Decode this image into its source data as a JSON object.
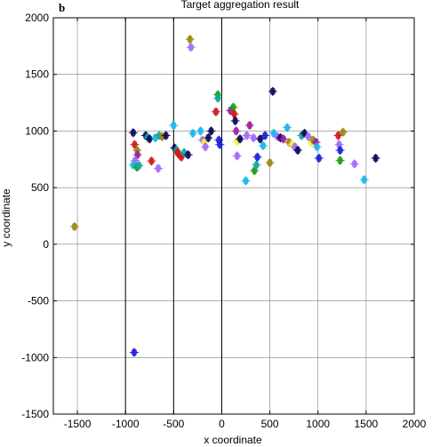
{
  "panel_tag": "b",
  "chart_data": {
    "type": "scatter",
    "title": "Target aggregation result",
    "xlabel": "x coordinate",
    "ylabel": "y coordinate",
    "xlim": [
      -1750,
      2000
    ],
    "ylim": [
      -1500,
      2000
    ],
    "grid": true,
    "legend": "none",
    "x_ticks": [
      -1500,
      -1000,
      -500,
      0,
      500,
      1000,
      1500,
      2000
    ],
    "y_ticks": [
      -1500,
      -1000,
      -500,
      0,
      500,
      1000,
      1500,
      2000
    ],
    "vertical_lines": [
      -1000,
      -500,
      0
    ],
    "colors": {
      "navy": "#0b0b5c",
      "blue": "#1f1fe0",
      "red": "#d21a1a",
      "green": "#1a9e1a",
      "magenta": "#a11fa1",
      "violet": "#a06cff",
      "cyan": "#19b8e8",
      "yellow": "#f0f040",
      "olive": "#9a8a10",
      "teal": "#14a89a",
      "gray": "#555555"
    },
    "points": [
      {
        "x": -1530,
        "y": 155,
        "color": "olive"
      },
      {
        "x": -920,
        "y": 985,
        "color": "navy"
      },
      {
        "x": -905,
        "y": 880,
        "color": "red"
      },
      {
        "x": -880,
        "y": 830,
        "color": "olive"
      },
      {
        "x": -875,
        "y": 790,
        "color": "magenta"
      },
      {
        "x": -900,
        "y": 740,
        "color": "violet"
      },
      {
        "x": -920,
        "y": 700,
        "color": "cyan"
      },
      {
        "x": -880,
        "y": 680,
        "color": "green"
      },
      {
        "x": -860,
        "y": 695,
        "color": "teal"
      },
      {
        "x": -910,
        "y": -955,
        "color": "blue"
      },
      {
        "x": -790,
        "y": 960,
        "color": "navy"
      },
      {
        "x": -770,
        "y": 945,
        "color": "teal"
      },
      {
        "x": -750,
        "y": 930,
        "color": "navy"
      },
      {
        "x": -730,
        "y": 735,
        "color": "red"
      },
      {
        "x": -690,
        "y": 940,
        "color": "cyan"
      },
      {
        "x": -650,
        "y": 960,
        "color": "teal"
      },
      {
        "x": -660,
        "y": 670,
        "color": "violet"
      },
      {
        "x": -620,
        "y": 950,
        "color": "olive"
      },
      {
        "x": -580,
        "y": 960,
        "color": "navy"
      },
      {
        "x": -500,
        "y": 1050,
        "color": "cyan"
      },
      {
        "x": -490,
        "y": 850,
        "color": "navy"
      },
      {
        "x": -470,
        "y": 830,
        "color": "teal"
      },
      {
        "x": -460,
        "y": 810,
        "color": "red"
      },
      {
        "x": -440,
        "y": 790,
        "color": "red"
      },
      {
        "x": -420,
        "y": 770,
        "color": "red"
      },
      {
        "x": -390,
        "y": 810,
        "color": "teal"
      },
      {
        "x": -350,
        "y": 790,
        "color": "navy"
      },
      {
        "x": -330,
        "y": 1810,
        "color": "olive"
      },
      {
        "x": -320,
        "y": 1740,
        "color": "violet"
      },
      {
        "x": -300,
        "y": 980,
        "color": "cyan"
      },
      {
        "x": -220,
        "y": 1000,
        "color": "cyan"
      },
      {
        "x": -200,
        "y": 920,
        "color": "violet"
      },
      {
        "x": -180,
        "y": 900,
        "color": "yellow"
      },
      {
        "x": -170,
        "y": 860,
        "color": "violet"
      },
      {
        "x": -140,
        "y": 940,
        "color": "navy"
      },
      {
        "x": -110,
        "y": 1000,
        "color": "navy"
      },
      {
        "x": -60,
        "y": 1170,
        "color": "red"
      },
      {
        "x": -40,
        "y": 1320,
        "color": "green"
      },
      {
        "x": -40,
        "y": 1290,
        "color": "teal"
      },
      {
        "x": -30,
        "y": 920,
        "color": "blue"
      },
      {
        "x": -20,
        "y": 880,
        "color": "blue"
      },
      {
        "x": 90,
        "y": 1180,
        "color": "magenta"
      },
      {
        "x": 120,
        "y": 1210,
        "color": "green"
      },
      {
        "x": 130,
        "y": 1150,
        "color": "red"
      },
      {
        "x": 140,
        "y": 1090,
        "color": "navy"
      },
      {
        "x": 150,
        "y": 1000,
        "color": "magenta"
      },
      {
        "x": 160,
        "y": 910,
        "color": "yellow"
      },
      {
        "x": 160,
        "y": 780,
        "color": "violet"
      },
      {
        "x": 190,
        "y": 930,
        "color": "navy"
      },
      {
        "x": 250,
        "y": 560,
        "color": "cyan"
      },
      {
        "x": 260,
        "y": 960,
        "color": "violet"
      },
      {
        "x": 290,
        "y": 1050,
        "color": "magenta"
      },
      {
        "x": 330,
        "y": 940,
        "color": "violet"
      },
      {
        "x": 340,
        "y": 650,
        "color": "green"
      },
      {
        "x": 360,
        "y": 700,
        "color": "teal"
      },
      {
        "x": 370,
        "y": 770,
        "color": "blue"
      },
      {
        "x": 400,
        "y": 930,
        "color": "navy"
      },
      {
        "x": 430,
        "y": 870,
        "color": "cyan"
      },
      {
        "x": 450,
        "y": 960,
        "color": "blue"
      },
      {
        "x": 500,
        "y": 720,
        "color": "olive"
      },
      {
        "x": 530,
        "y": 1350,
        "color": "navy"
      },
      {
        "x": 540,
        "y": 980,
        "color": "cyan"
      },
      {
        "x": 580,
        "y": 950,
        "color": "violet"
      },
      {
        "x": 610,
        "y": 940,
        "color": "navy"
      },
      {
        "x": 640,
        "y": 930,
        "color": "magenta"
      },
      {
        "x": 680,
        "y": 1030,
        "color": "cyan"
      },
      {
        "x": 700,
        "y": 900,
        "color": "olive"
      },
      {
        "x": 730,
        "y": 880,
        "color": "yellow"
      },
      {
        "x": 760,
        "y": 860,
        "color": "violet"
      },
      {
        "x": 790,
        "y": 830,
        "color": "navy"
      },
      {
        "x": 830,
        "y": 960,
        "color": "teal"
      },
      {
        "x": 860,
        "y": 980,
        "color": "navy"
      },
      {
        "x": 900,
        "y": 950,
        "color": "violet"
      },
      {
        "x": 930,
        "y": 900,
        "color": "yellow"
      },
      {
        "x": 950,
        "y": 920,
        "color": "olive"
      },
      {
        "x": 980,
        "y": 900,
        "color": "magenta"
      },
      {
        "x": 990,
        "y": 860,
        "color": "cyan"
      },
      {
        "x": 1010,
        "y": 760,
        "color": "blue"
      },
      {
        "x": 1210,
        "y": 960,
        "color": "red"
      },
      {
        "x": 1220,
        "y": 880,
        "color": "violet"
      },
      {
        "x": 1230,
        "y": 830,
        "color": "blue"
      },
      {
        "x": 1230,
        "y": 740,
        "color": "green"
      },
      {
        "x": 1260,
        "y": 990,
        "color": "olive"
      },
      {
        "x": 1380,
        "y": 710,
        "color": "violet"
      },
      {
        "x": 1480,
        "y": 570,
        "color": "cyan"
      },
      {
        "x": 1600,
        "y": 760,
        "color": "navy"
      }
    ]
  }
}
